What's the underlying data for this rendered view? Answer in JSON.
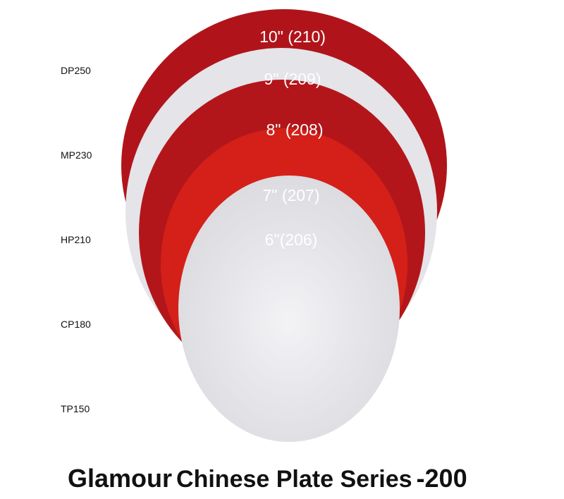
{
  "product_codes": [
    "DP250",
    "MP230",
    "HP210",
    "CP180",
    "TP150"
  ],
  "plates": [
    {
      "label": "10\" (210)",
      "color": "#b0141a"
    },
    {
      "label": "9\" (209)",
      "color": "#e6e6ea"
    },
    {
      "label": "8\" (208)",
      "color": "#b3161a"
    },
    {
      "label": "7\" (207)",
      "color": "#d42018"
    },
    {
      "label": "6\"(206)",
      "color": "#e9eaee"
    }
  ],
  "title": {
    "brand": "Glamour",
    "name": "Chinese Plate Series",
    "number": "-200"
  }
}
